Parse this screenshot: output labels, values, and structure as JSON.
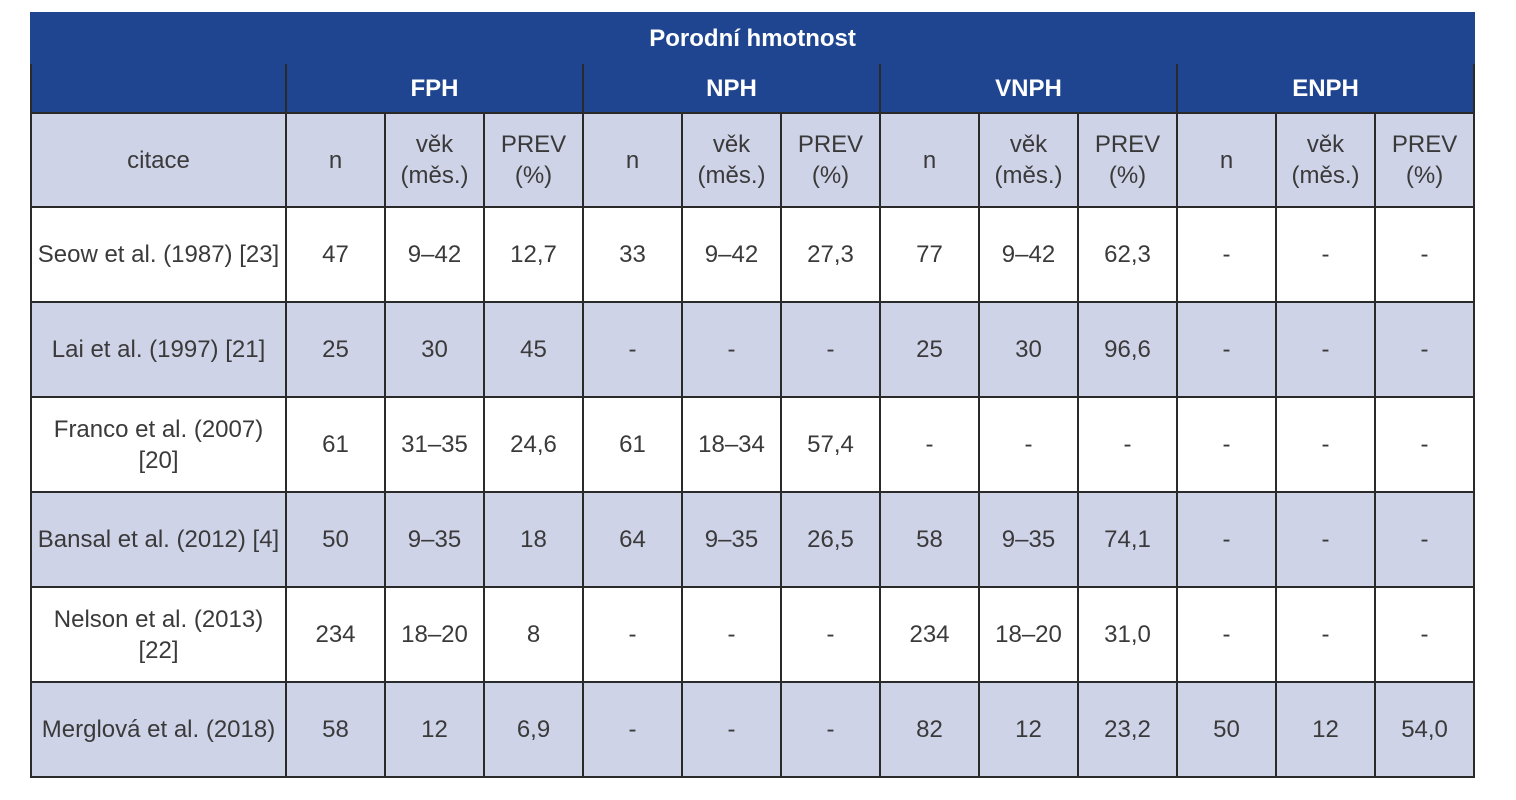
{
  "table": {
    "title": "Porodní hmotnost",
    "groups": [
      "FPH",
      "NPH",
      "VNPH",
      "ENPH"
    ],
    "subheaders": {
      "citation": "citace",
      "n": "n",
      "age": "věk (měs.)",
      "prev": "PREV (%)"
    },
    "rows": [
      {
        "citation": "Seow et al. (1987) [23]",
        "values": [
          "47",
          "9–42",
          "12,7",
          "33",
          "9–42",
          "27,3",
          "77",
          "9–42",
          "62,3",
          "-",
          "-",
          "-"
        ]
      },
      {
        "citation": "Lai et al. (1997) [21]",
        "values": [
          "25",
          "30",
          "45",
          "-",
          "-",
          "-",
          "25",
          "30",
          "96,6",
          "-",
          "-",
          "-"
        ]
      },
      {
        "citation": "Franco et al. (2007) [20]",
        "values": [
          "61",
          "31–35",
          "24,6",
          "61",
          "18–34",
          "57,4",
          "-",
          "-",
          "-",
          "-",
          "-",
          "-"
        ]
      },
      {
        "citation": "Bansal et al. (2012) [4]",
        "values": [
          "50",
          "9–35",
          "18",
          "64",
          "9–35",
          "26,5",
          "58",
          "9–35",
          "74,1",
          "-",
          "-",
          "-"
        ]
      },
      {
        "citation": "Nelson et al. (2013) [22]",
        "values": [
          "234",
          "18–20",
          "8",
          "-",
          "-",
          "-",
          "234",
          "18–20",
          "31,0",
          "-",
          "-",
          "-"
        ]
      },
      {
        "citation": "Merglová et al. (2018)",
        "values": [
          "58",
          "12",
          "6,9",
          "-",
          "-",
          "-",
          "82",
          "12",
          "23,2",
          "50",
          "12",
          "54,0"
        ]
      }
    ]
  }
}
